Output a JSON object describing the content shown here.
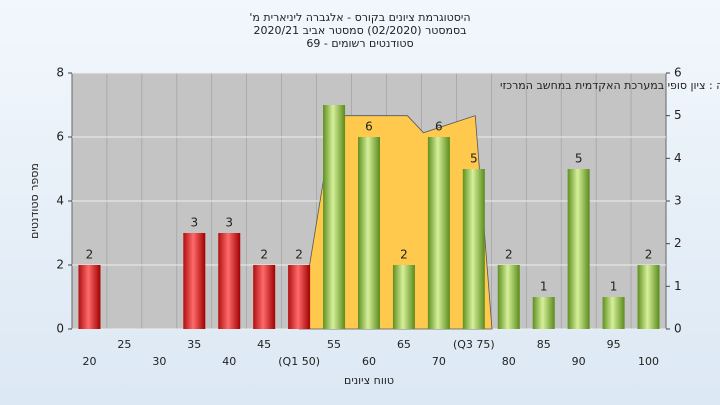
{
  "chart_data": {
    "type": "bar",
    "title": [
      "היסטוגרמת ציונים בקורס - אלגברה ליניארית מ'",
      "בסמסטר (02/2020) סמסטר אביב 2020/21",
      "סטודנטים רשומים - 69"
    ],
    "annotation": "במשימה : ציון סופי במערכת האקדמית במחשב המרכזי",
    "xlabel": "טווח ציונים",
    "ylabel": "מספר סטודנטים",
    "categories": [
      "20",
      "25",
      "30",
      "35",
      "40",
      "45",
      "(Q1 50)",
      "55",
      "60",
      "65",
      "70",
      "(Q3 75)",
      "80",
      "85",
      "90",
      "95",
      "100"
    ],
    "values": [
      2,
      0,
      0,
      3,
      3,
      2,
      2,
      7,
      6,
      2,
      6,
      5,
      2,
      1,
      5,
      1,
      2
    ],
    "value_labels": [
      "2",
      null,
      null,
      "3",
      "3",
      "2",
      "2",
      null,
      "6",
      "2",
      "6",
      "5",
      "2",
      "1",
      "5",
      "1",
      "2"
    ],
    "colors": [
      "#e02020",
      "#e02020",
      "#e02020",
      "#e02020",
      "#e02020",
      "#e02020",
      "#e02020",
      "#8cc63f",
      "#8cc63f",
      "#8cc63f",
      "#8cc63f",
      "#8cc63f",
      "#8cc63f",
      "#8cc63f",
      "#8cc63f",
      "#8cc63f",
      "#8cc63f"
    ],
    "ylim": [
      0,
      8
    ],
    "yticks": [
      0,
      2,
      4,
      6,
      8
    ],
    "y2lim": [
      0,
      6
    ],
    "y2ticks": [
      0,
      1,
      2,
      3,
      4,
      5,
      6
    ],
    "xlim": [
      17.5,
      102.5
    ],
    "area": {
      "axis": "y2",
      "color": "#ffc94d",
      "x": [
        50,
        54,
        56.4,
        65.5,
        67.8,
        75.2,
        77.6
      ],
      "values": [
        0,
        4,
        5,
        5,
        4.6,
        5,
        0
      ]
    },
    "grid": true
  }
}
